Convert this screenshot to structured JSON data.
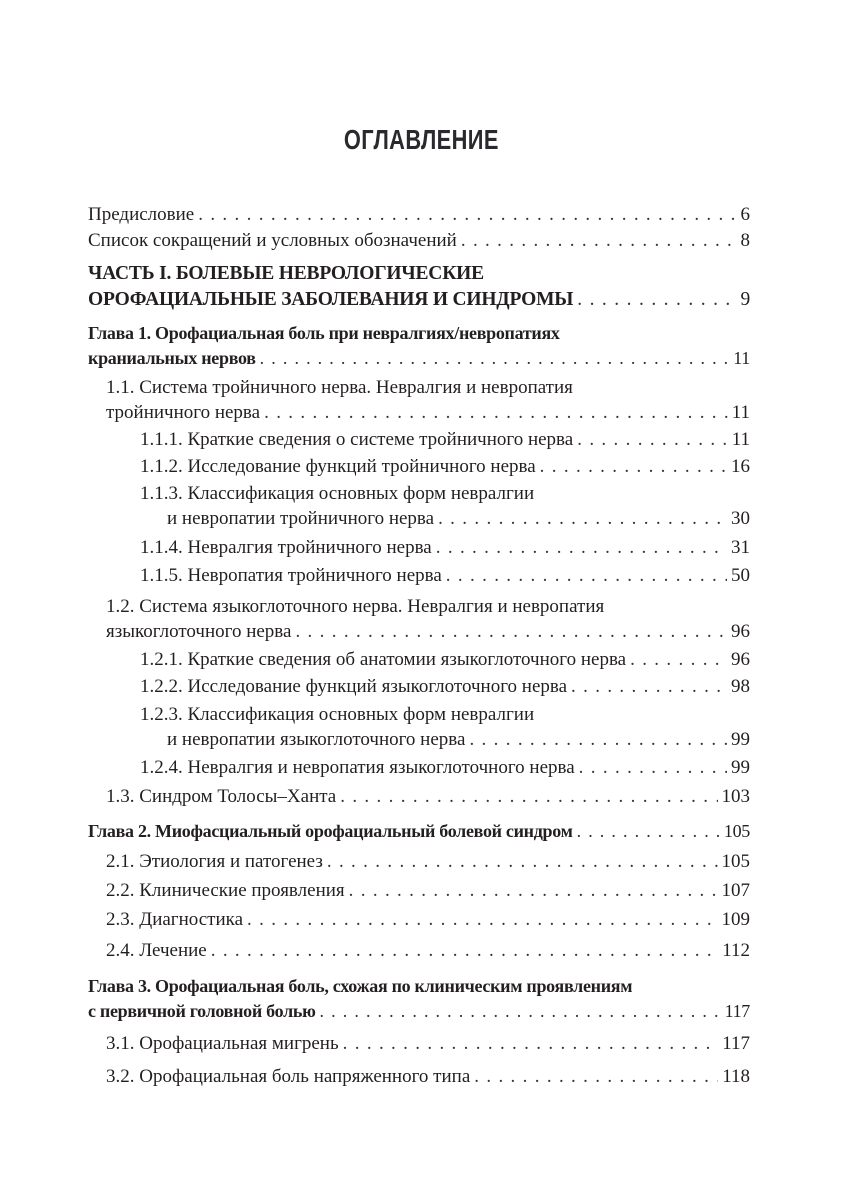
{
  "title": "ОГЛАВЛЕНИЕ",
  "entries": [
    {
      "level": 0,
      "style": "normal",
      "lines": [
        "Предисловие"
      ],
      "page": "6"
    },
    {
      "level": 0,
      "style": "normal",
      "lines": [
        "Список сокращений и условных обозначений"
      ],
      "page": "8"
    },
    {
      "level": 0,
      "style": "part",
      "lines": [
        "ЧАСТЬ I. БОЛЕВЫЕ НЕВРОЛОГИЧЕСКИЕ",
        "ОРОФАЦИАЛЬНЫЕ ЗАБОЛЕВАНИЯ И СИНДРОМЫ"
      ],
      "page": "9"
    },
    {
      "level": 0,
      "style": "bold",
      "lines": [
        "Глава 1. Орофациальная боль при невралгиях/невропатиях",
        "краниальных нервов"
      ],
      "page": "11"
    },
    {
      "level": 1,
      "style": "normal",
      "lines": [
        "1.1. Система тройничного нерва. Невралгия и невропатия",
        "тройничного нерва"
      ],
      "page": "11"
    },
    {
      "level": 2,
      "style": "normal",
      "lines": [
        "1.1.1. Краткие сведения о системе тройничного нерва"
      ],
      "page": "11"
    },
    {
      "level": 2,
      "style": "normal",
      "lines": [
        "1.1.2. Исследование функций тройничного нерва"
      ],
      "page": "16"
    },
    {
      "level": 2,
      "style": "normal",
      "lines": [
        "1.1.3. Классификация основных форм невралгии",
        "и невропатии тройничного нерва"
      ],
      "page": "30"
    },
    {
      "level": 2,
      "style": "normal",
      "lines": [
        "1.1.4. Невралгия тройничного нерва"
      ],
      "page": "31"
    },
    {
      "level": 2,
      "style": "normal",
      "lines": [
        "1.1.5. Невропатия тройничного нерва"
      ],
      "page": "50"
    },
    {
      "level": 1,
      "style": "normal",
      "lines": [
        "1.2. Система языкоглоточного нерва. Невралгия и невропатия",
        "языкоглоточного нерва"
      ],
      "page": "96"
    },
    {
      "level": 2,
      "style": "normal",
      "lines": [
        "1.2.1. Краткие сведения об анатомии языкоглоточного нерва"
      ],
      "page": "96"
    },
    {
      "level": 2,
      "style": "normal",
      "lines": [
        "1.2.2. Исследование функций языкоглоточного нерва"
      ],
      "page": "98"
    },
    {
      "level": 2,
      "style": "normal",
      "lines": [
        "1.2.3. Классификация основных форм невралгии",
        "и невропатии языкоглоточного нерва"
      ],
      "page": "99"
    },
    {
      "level": 2,
      "style": "normal",
      "lines": [
        "1.2.4. Невралгия и невропатия языкоглоточного нерва"
      ],
      "page": "99"
    },
    {
      "level": 1,
      "style": "normal",
      "lines": [
        "1.3. Синдром Толосы–Ханта"
      ],
      "page": "103"
    },
    {
      "level": 0,
      "style": "bold",
      "lines": [
        "Глава 2. Миофасциальный орофациальный болевой синдром"
      ],
      "page": "105"
    },
    {
      "level": 1,
      "style": "normal",
      "lines": [
        "2.1. Этиология и патогенез"
      ],
      "page": "105"
    },
    {
      "level": 1,
      "style": "normal",
      "lines": [
        "2.2. Клинические проявления"
      ],
      "page": "107"
    },
    {
      "level": 1,
      "style": "normal",
      "lines": [
        "2.3. Диагностика"
      ],
      "page": "109"
    },
    {
      "level": 1,
      "style": "normal",
      "lines": [
        "2.4. Лечение"
      ],
      "page": "112"
    },
    {
      "level": 0,
      "style": "bold",
      "lines": [
        "Глава 3. Орофациальная боль, схожая по клиническим проявлениям",
        "с первичной головной болью"
      ],
      "page": "117"
    },
    {
      "level": 1,
      "style": "normal",
      "lines": [
        "3.1. Орофациальная мигрень"
      ],
      "page": "117"
    },
    {
      "level": 1,
      "style": "normal",
      "lines": [
        "3.2. Орофациальная боль напряженного типа"
      ],
      "page": "118"
    }
  ]
}
